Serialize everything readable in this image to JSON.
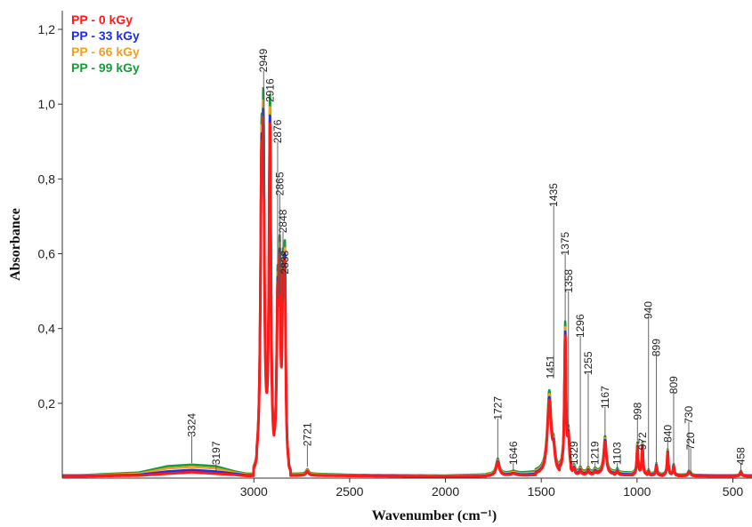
{
  "chart_data": {
    "type": "line",
    "xlabel": "Wavenumber (cm⁻¹)",
    "ylabel": "Absorbance",
    "xlim": [
      4000,
      400
    ],
    "x_reversed": true,
    "ylim": [
      0,
      1.25
    ],
    "x_ticks": [
      {
        "value": 3000,
        "label": "3000"
      },
      {
        "value": 2500,
        "label": "2500"
      },
      {
        "value": 2000,
        "label": "2000"
      },
      {
        "value": 1500,
        "label": "1500"
      },
      {
        "value": 1000,
        "label": "1000"
      },
      {
        "value": 500,
        "label": "500"
      }
    ],
    "y_ticks": [
      {
        "value": 0.2,
        "label": "0,2"
      },
      {
        "value": 0.4,
        "label": "0,4"
      },
      {
        "value": 0.6,
        "label": "0,6"
      },
      {
        "value": 0.8,
        "label": "0,8"
      },
      {
        "value": 1.0,
        "label": "1,0"
      },
      {
        "value": 1.2,
        "label": "1,2"
      }
    ],
    "legend_position": "top-left",
    "series": [
      {
        "name": "PP - 99 kGy",
        "color": "#1a9a3a",
        "scale": 1.0,
        "baseline": [
          [
            3900,
            0.008
          ],
          [
            3600,
            0.015
          ],
          [
            3450,
            0.032
          ],
          [
            3324,
            0.036
          ],
          [
            3200,
            0.032
          ],
          [
            3100,
            0.018
          ],
          [
            3040,
            0.012
          ],
          [
            2700,
            0.012
          ],
          [
            2500,
            0.009
          ],
          [
            2000,
            0.007
          ],
          [
            1800,
            0.01
          ],
          [
            1600,
            0.015
          ],
          [
            1500,
            0.02
          ],
          [
            1200,
            0.018
          ],
          [
            1000,
            0.015
          ],
          [
            800,
            0.01
          ],
          [
            600,
            0.008
          ],
          [
            400,
            0.008
          ]
        ]
      },
      {
        "name": "PP - 66 kGy",
        "color": "#f0a020",
        "scale": 0.97,
        "baseline": [
          [
            3900,
            0.007
          ],
          [
            3600,
            0.012
          ],
          [
            3450,
            0.026
          ],
          [
            3324,
            0.03
          ],
          [
            3200,
            0.026
          ],
          [
            3100,
            0.015
          ],
          [
            3040,
            0.01
          ],
          [
            2700,
            0.01
          ],
          [
            2500,
            0.008
          ],
          [
            2000,
            0.006
          ],
          [
            1800,
            0.008
          ],
          [
            1600,
            0.012
          ],
          [
            1500,
            0.016
          ],
          [
            1200,
            0.015
          ],
          [
            1000,
            0.013
          ],
          [
            800,
            0.009
          ],
          [
            600,
            0.007
          ],
          [
            400,
            0.007
          ]
        ]
      },
      {
        "name": "PP - 33 kGy",
        "color": "#1f2ee8",
        "scale": 0.95,
        "baseline": [
          [
            3900,
            0.006
          ],
          [
            3600,
            0.009
          ],
          [
            3450,
            0.018
          ],
          [
            3324,
            0.022
          ],
          [
            3200,
            0.018
          ],
          [
            3100,
            0.012
          ],
          [
            3040,
            0.008
          ],
          [
            2700,
            0.008
          ],
          [
            2500,
            0.007
          ],
          [
            2000,
            0.005
          ],
          [
            1800,
            0.006
          ],
          [
            1600,
            0.009
          ],
          [
            1500,
            0.012
          ],
          [
            1200,
            0.012
          ],
          [
            1000,
            0.01
          ],
          [
            800,
            0.008
          ],
          [
            600,
            0.006
          ],
          [
            400,
            0.006
          ]
        ]
      },
      {
        "name": "PP - 0 kGy",
        "color": "#ff1a1a",
        "scale": 0.93,
        "baseline": [
          [
            3900,
            0.005
          ],
          [
            3600,
            0.007
          ],
          [
            3450,
            0.012
          ],
          [
            3324,
            0.016
          ],
          [
            3200,
            0.012
          ],
          [
            3100,
            0.009
          ],
          [
            3040,
            0.006
          ],
          [
            2700,
            0.007
          ],
          [
            2500,
            0.006
          ],
          [
            2000,
            0.004
          ],
          [
            1800,
            0.005
          ],
          [
            1600,
            0.007
          ],
          [
            1500,
            0.009
          ],
          [
            1200,
            0.009
          ],
          [
            1000,
            0.008
          ],
          [
            800,
            0.006
          ],
          [
            600,
            0.005
          ],
          [
            400,
            0.005
          ]
        ]
      }
    ],
    "bands": [
      {
        "x": 2960,
        "h": 0.75,
        "w": 7
      },
      {
        "x": 2950,
        "h": 0.74,
        "w": 6
      },
      {
        "x": 2916,
        "h": 0.99,
        "w": 6
      },
      {
        "x": 2876,
        "h": 0.46,
        "w": 6
      },
      {
        "x": 2865,
        "h": 0.48,
        "w": 5
      },
      {
        "x": 2848,
        "h": 0.44,
        "w": 5
      },
      {
        "x": 2838,
        "h": 0.52,
        "w": 5
      },
      {
        "x": 2721,
        "h": 0.012,
        "w": 8
      },
      {
        "x": 1727,
        "h": 0.04,
        "w": 10
      },
      {
        "x": 1646,
        "h": 0.006,
        "w": 20
      },
      {
        "x": 1458,
        "h": 0.21,
        "w": 12
      },
      {
        "x": 1435,
        "h": 0.05,
        "w": 8
      },
      {
        "x": 1375,
        "h": 0.39,
        "w": 5
      },
      {
        "x": 1358,
        "h": 0.09,
        "w": 6
      },
      {
        "x": 1329,
        "h": 0.015,
        "w": 6
      },
      {
        "x": 1296,
        "h": 0.012,
        "w": 6
      },
      {
        "x": 1255,
        "h": 0.012,
        "w": 6
      },
      {
        "x": 1219,
        "h": 0.01,
        "w": 6
      },
      {
        "x": 1167,
        "h": 0.095,
        "w": 8
      },
      {
        "x": 1103,
        "h": 0.01,
        "w": 6
      },
      {
        "x": 998,
        "h": 0.08,
        "w": 4
      },
      {
        "x": 972,
        "h": 0.082,
        "w": 4
      },
      {
        "x": 940,
        "h": 0.01,
        "w": 4
      },
      {
        "x": 899,
        "h": 0.028,
        "w": 4
      },
      {
        "x": 840,
        "h": 0.066,
        "w": 4
      },
      {
        "x": 809,
        "h": 0.028,
        "w": 4
      },
      {
        "x": 730,
        "h": 0.01,
        "w": 5
      },
      {
        "x": 720,
        "h": 0.005,
        "w": 4
      },
      {
        "x": 458,
        "h": 0.012,
        "w": 5
      }
    ],
    "peak_labels": [
      {
        "x": 3324,
        "label": "3324",
        "tip": 0.04,
        "top": 0.115
      },
      {
        "x": 3197,
        "label": "3197",
        "tip": 0.02,
        "top": 0.04
      },
      {
        "x": 2949,
        "label": "2949",
        "tip": 0.75,
        "top": 1.09
      },
      {
        "x": 2916,
        "label": "2916",
        "tip": 1.0,
        "top": 1.01
      },
      {
        "x": 2876,
        "label": "2876",
        "tip": 0.48,
        "top": 0.9
      },
      {
        "x": 2865,
        "label": "2865",
        "tip": 0.49,
        "top": 0.76
      },
      {
        "x": 2848,
        "label": "2848",
        "tip": 0.47,
        "top": 0.66
      },
      {
        "x": 2838,
        "label": "2838",
        "tip": 0.54,
        "top": 0.55
      },
      {
        "x": 2721,
        "label": "2721",
        "tip": 0.03,
        "top": 0.09
      },
      {
        "x": 1727,
        "label": "1727",
        "tip": 0.05,
        "top": 0.16
      },
      {
        "x": 1646,
        "label": "1646",
        "tip": 0.02,
        "top": 0.04
      },
      {
        "x": 1451,
        "label": "1451",
        "tip": 0.27,
        "top": 0.27
      },
      {
        "x": 1435,
        "label": "1435",
        "tip": 0.28,
        "top": 0.73
      },
      {
        "x": 1375,
        "label": "1375",
        "tip": 0.41,
        "top": 0.6
      },
      {
        "x": 1358,
        "label": "1358",
        "tip": 0.13,
        "top": 0.5
      },
      {
        "x": 1329,
        "label": "1329",
        "tip": 0.04,
        "top": 0.04
      },
      {
        "x": 1296,
        "label": "1296",
        "tip": 0.03,
        "top": 0.38
      },
      {
        "x": 1255,
        "label": "1255",
        "tip": 0.03,
        "top": 0.28
      },
      {
        "x": 1219,
        "label": "1219",
        "tip": 0.03,
        "top": 0.04
      },
      {
        "x": 1167,
        "label": "1167",
        "tip": 0.11,
        "top": 0.19
      },
      {
        "x": 1103,
        "label": "1103",
        "tip": 0.02,
        "top": 0.04
      },
      {
        "x": 998,
        "label": "998",
        "tip": 0.09,
        "top": 0.16
      },
      {
        "x": 972,
        "label": "972",
        "tip": 0.09,
        "top": 0.08
      },
      {
        "x": 940,
        "label": "940",
        "tip": 0.02,
        "top": 0.43
      },
      {
        "x": 899,
        "label": "899",
        "tip": 0.04,
        "top": 0.33
      },
      {
        "x": 840,
        "label": "840",
        "tip": 0.08,
        "top": 0.1
      },
      {
        "x": 809,
        "label": "809",
        "tip": 0.04,
        "top": 0.23
      },
      {
        "x": 730,
        "label": "730",
        "tip": 0.02,
        "top": 0.15
      },
      {
        "x": 720,
        "label": "720",
        "tip": 0.01,
        "top": 0.08
      },
      {
        "x": 458,
        "label": "458",
        "tip": 0.02,
        "top": 0.04
      }
    ]
  }
}
